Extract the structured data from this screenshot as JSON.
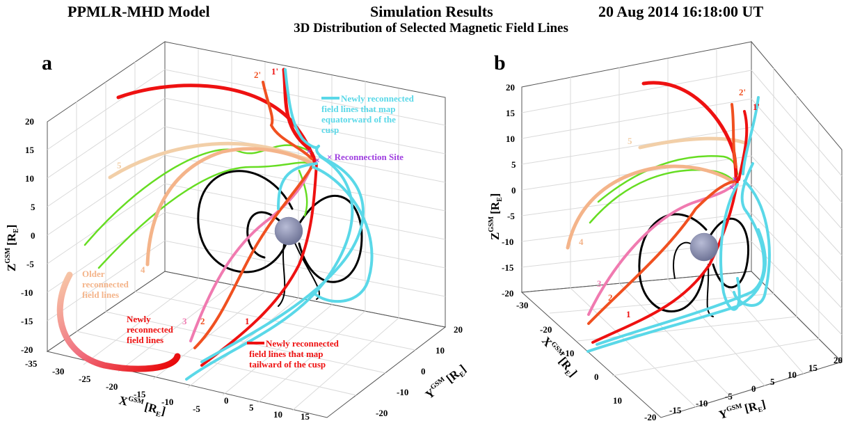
{
  "header": {
    "model": "PPMLR-MHD Model",
    "simulation": "Simulation Results",
    "datetime": "20 Aug 2014  16:18:00 UT",
    "subtitle": "3D Distribution of Selected Magnetic Field Lines"
  },
  "panel_a": {
    "label": "a",
    "z_label": "Z",
    "z_sup": "GSM",
    "z_unit": "[R",
    "z_unit_sub": "E",
    "z_unit_close": "]",
    "x_label": "X",
    "x_sup": "GSM",
    "x_unit": "[R",
    "x_unit_sub": "E",
    "x_unit_close": "]",
    "y_label": "Y",
    "y_sup": "GSM",
    "y_unit": "[R",
    "y_unit_sub": "E",
    "y_unit_close": "]",
    "z_ticks": [
      "20",
      "15",
      "10",
      "5",
      "0",
      "-5",
      "-10",
      "-15",
      "-20"
    ],
    "x_ticks": [
      "-35",
      "-30",
      "-25",
      "-20",
      "-15",
      "-10",
      "-5",
      "0",
      "5",
      "10",
      "15"
    ],
    "y_ticks": [
      "20",
      "10",
      "0",
      "-10",
      "-20"
    ],
    "annotations": {
      "cyan_text": [
        "Newly reconnected",
        "field lines that map",
        "equatorward of the",
        "cusp"
      ],
      "reconnection": "× Reconnection Site",
      "older_text": [
        "Older",
        "reconnected",
        "field lines"
      ],
      "newly_text": [
        "Newly",
        "reconnected",
        "field lines"
      ],
      "tailward_text": [
        "Newly reconnected",
        "field lines that map",
        "tailward of the cusp"
      ],
      "n1": "1",
      "n2": "2",
      "n3": "3",
      "n4": "4",
      "n5": "5",
      "n1p": "1'",
      "n2p": "2'"
    }
  },
  "panel_b": {
    "label": "b",
    "z_label": "Z",
    "z_sup": "GSM",
    "z_unit": "[R",
    "z_unit_sub": "E",
    "z_unit_close": "]",
    "x_label": "X",
    "x_sup": "GSM",
    "x_unit": "[R",
    "x_unit_sub": "E",
    "x_unit_close": "]",
    "y_label": "Y",
    "y_sup": "GSM",
    "y_unit": "[R",
    "y_unit_sub": "E",
    "y_unit_close": "]",
    "z_ticks": [
      "20",
      "15",
      "10",
      "5",
      "0",
      "-5",
      "-10",
      "-15",
      "-20"
    ],
    "x_ticks": [
      "-30",
      "-20",
      "-10",
      "0",
      "10"
    ],
    "y_ticks": [
      "-20",
      "-15",
      "-10",
      "-5",
      "0",
      "5",
      "10",
      "15",
      "20"
    ],
    "annotations": {
      "n1": "1",
      "n2": "2",
      "n3": "3",
      "n4": "4",
      "n5": "5",
      "n1p": "1'",
      "n2p": "2'"
    }
  },
  "colors": {
    "cyan": "#5ad8e8",
    "red": "#ee1111",
    "orange_red": "#f05020",
    "pink": "#f07ab0",
    "peach": "#f4b48a",
    "tan": "#f2cfa8",
    "green": "#66dd22",
    "black": "#000000",
    "purple": "#a040e0",
    "earth": "#8a8fb0"
  }
}
